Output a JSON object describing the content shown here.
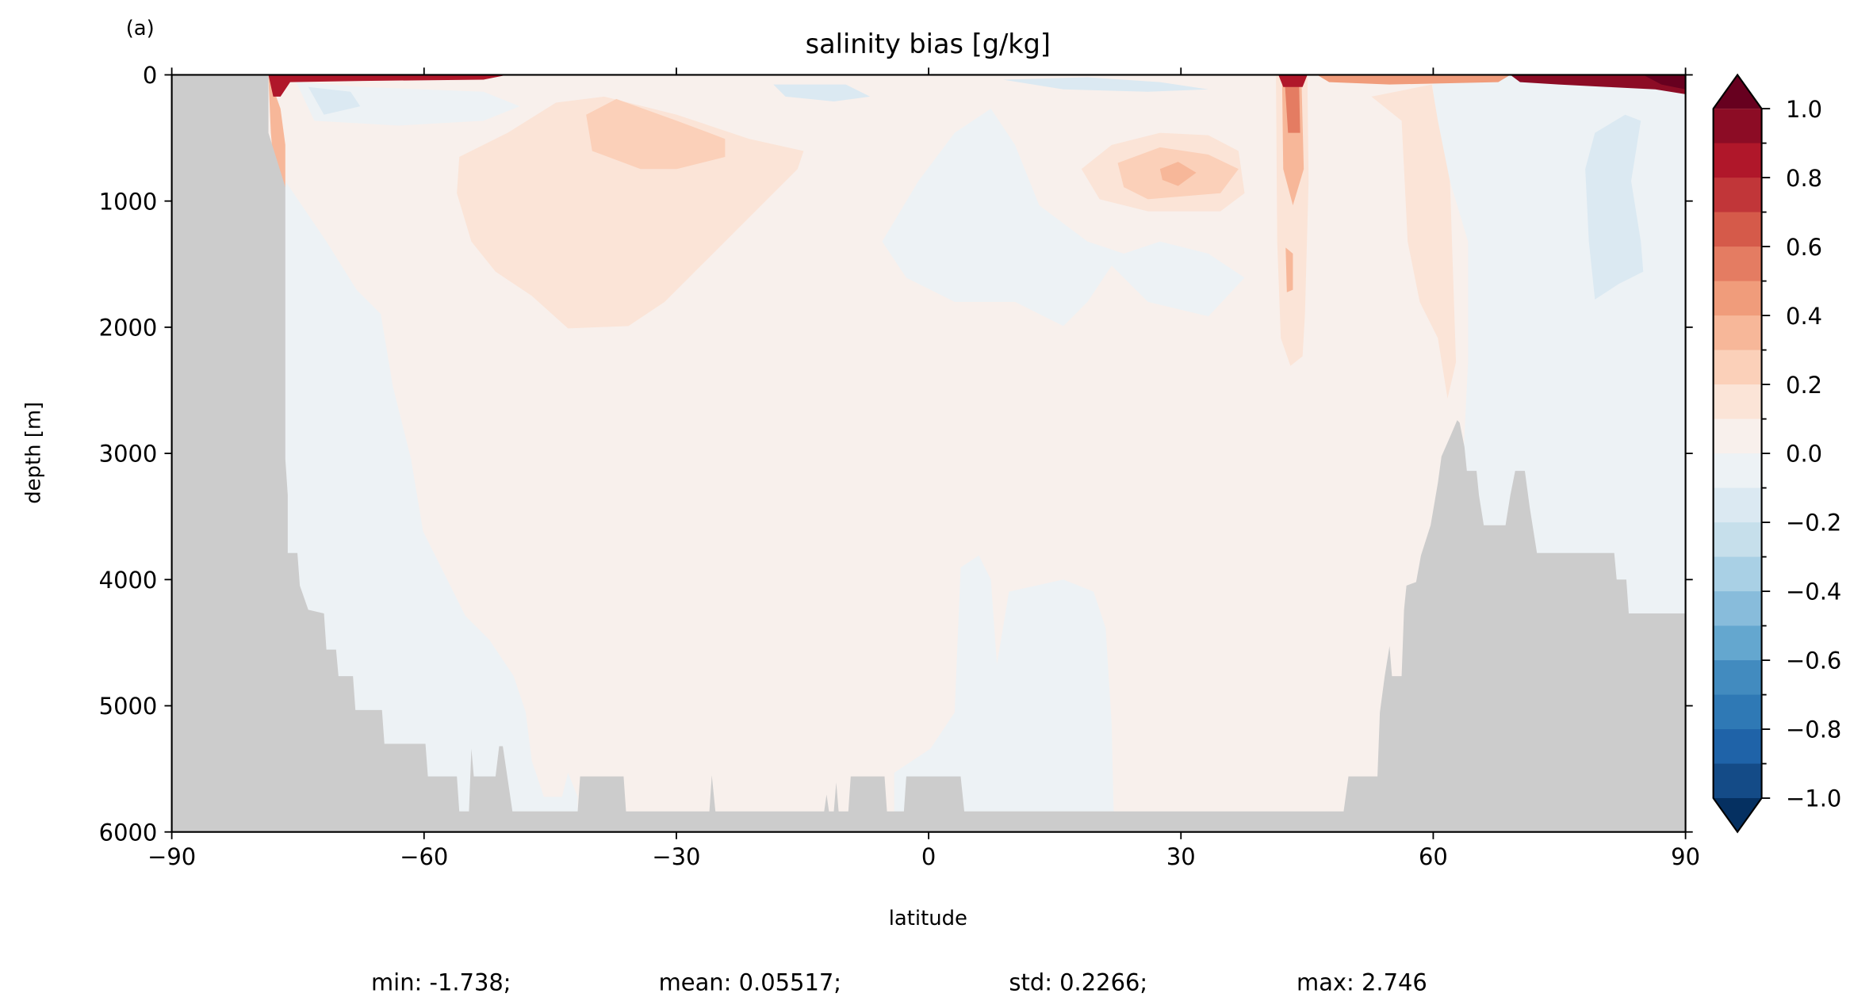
{
  "panel_label": "(a)",
  "chart_data": {
    "type": "heatmap",
    "subtype": "filled-contour latitude-depth section",
    "title": "salinity bias [g/kg]",
    "xlabel": "latitude",
    "ylabel": "depth [m]",
    "xlim": [
      -90,
      90
    ],
    "ylim": [
      6000,
      0
    ],
    "xticks": [
      -90,
      -60,
      -30,
      0,
      30,
      60,
      90
    ],
    "xtick_labels": [
      "−90",
      "−60",
      "−30",
      "0",
      "30",
      "60",
      "90"
    ],
    "yticks": [
      0,
      1000,
      2000,
      3000,
      4000,
      5000,
      6000
    ],
    "ytick_labels": [
      "0",
      "1000",
      "2000",
      "3000",
      "4000",
      "5000",
      "6000"
    ],
    "colorbar": {
      "range": [
        -1.0,
        1.0
      ],
      "step": 0.1,
      "extend": "both",
      "ticks": [
        1.0,
        0.8,
        0.6,
        0.4,
        0.2,
        0.0,
        -0.2,
        -0.4,
        -0.6,
        -0.8,
        -1.0
      ],
      "tick_labels": [
        "1.0",
        "0.8",
        "0.6",
        "0.4",
        "0.2",
        "0.0",
        "−0.2",
        "−0.4",
        "−0.6",
        "−0.8",
        "−1.0"
      ],
      "colors_high_to_low": [
        "#8c0c25",
        "#b0172a",
        "#c13639",
        "#d55a4a",
        "#e47c62",
        "#f09c7b",
        "#f7b799",
        "#fbd0b9",
        "#fbe4d7",
        "#f8f0ec",
        "#edf2f5",
        "#dbe9f2",
        "#c6dfeb",
        "#a9d0e5",
        "#88bcdb",
        "#64a7cf",
        "#428bbf",
        "#2f79b5",
        "#1f63a8",
        "#144b87"
      ],
      "over_color": "#67001f",
      "under_color": "#053061"
    },
    "land_color": "#cccccc",
    "grid": false,
    "stats": {
      "min": "min: -1.738;",
      "mean": "mean: 0.05517;",
      "std": "std: 0.2266;",
      "max": "max: 2.746"
    }
  }
}
